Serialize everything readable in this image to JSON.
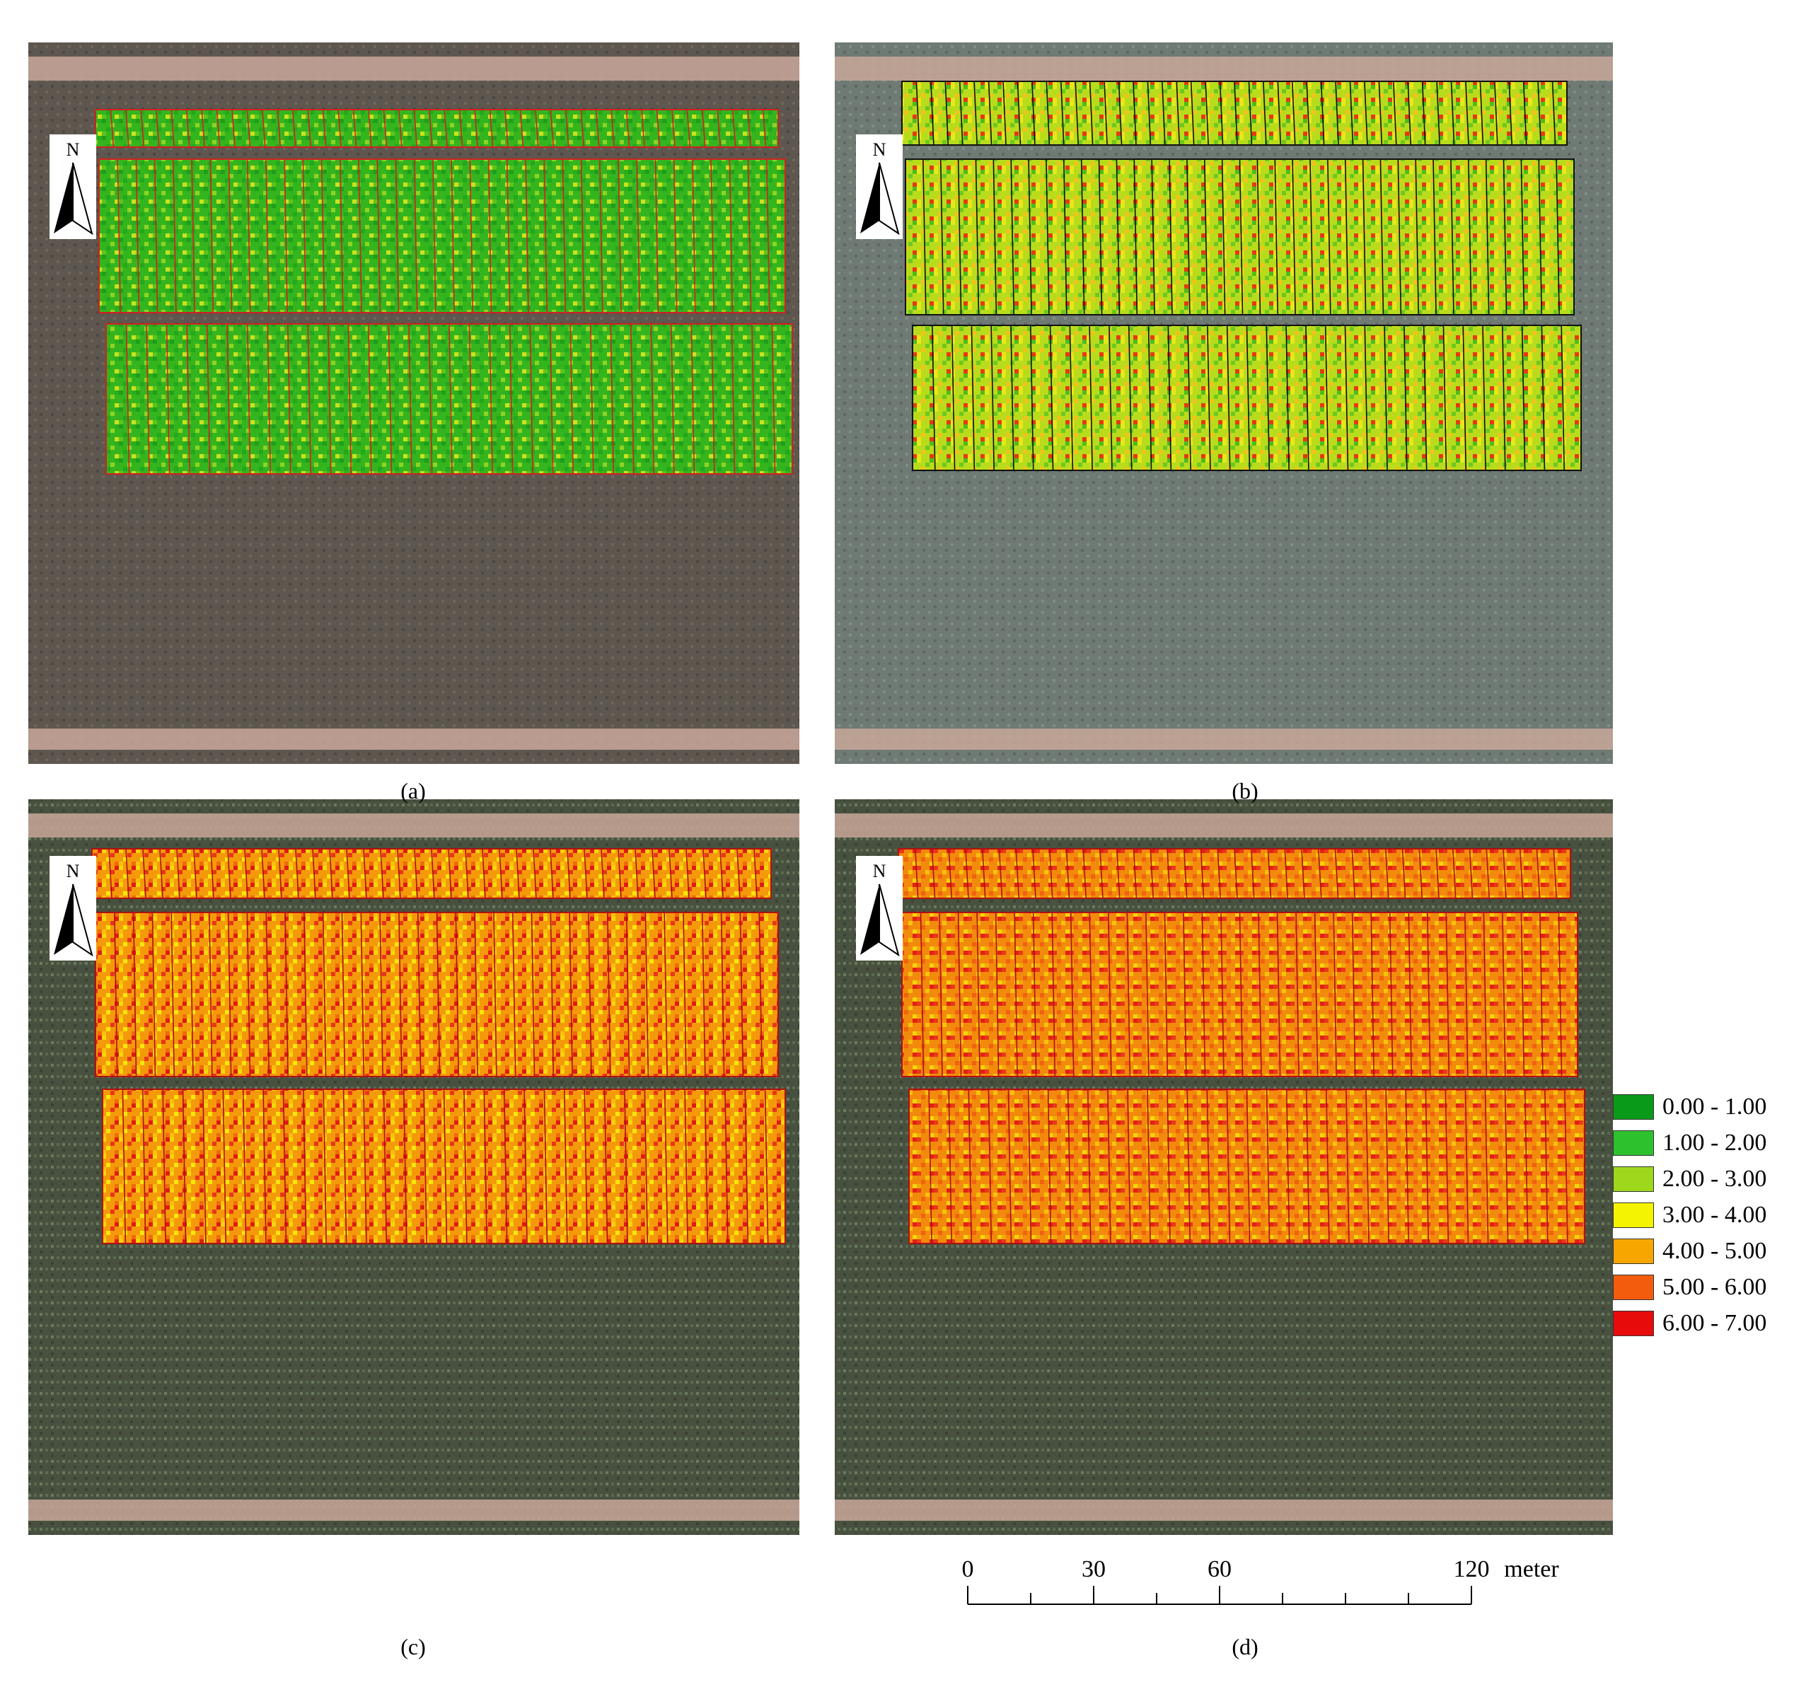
{
  "panels": [
    {
      "id": "a",
      "caption": "(a)",
      "border_color": "#d42020",
      "palette": "green",
      "north_label": "N"
    },
    {
      "id": "b",
      "caption": "(b)",
      "border_color": "#101010",
      "palette": "greenyellow",
      "north_label": "N"
    },
    {
      "id": "c",
      "caption": "(c)",
      "border_color": "#b01010",
      "palette": "hot",
      "north_label": "N"
    },
    {
      "id": "d",
      "caption": "(d)",
      "border_color": "#b01010",
      "palette": "hot2",
      "north_label": "N"
    }
  ],
  "legend": [
    {
      "label": "0.00 - 1.00",
      "color": "#0a9a1a"
    },
    {
      "label": "1.00 - 2.00",
      "color": "#2ec12e"
    },
    {
      "label": "2.00 - 3.00",
      "color": "#9ed81c"
    },
    {
      "label": "3.00 - 4.00",
      "color": "#f4f400"
    },
    {
      "label": "4.00 - 5.00",
      "color": "#f7a600"
    },
    {
      "label": "5.00 - 6.00",
      "color": "#f35c0d"
    },
    {
      "label": "6.00 - 7.00",
      "color": "#e80b0b"
    }
  ],
  "scale_bar": {
    "ticks": [
      "0",
      "30",
      "60",
      "120"
    ],
    "unit": "meter"
  },
  "colors": {
    "soil": "#5e574f",
    "road": "#c9a79a",
    "vegetation_dark": "#3d4538"
  }
}
